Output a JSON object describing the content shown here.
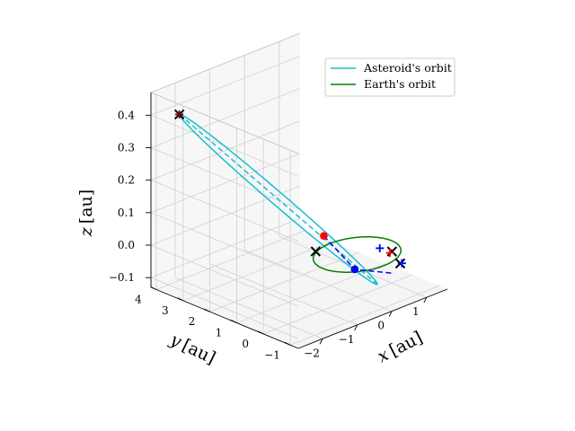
{
  "chart_data": {
    "type": "line",
    "projection": "3d",
    "title": "",
    "xlabel": "$x$ [au]",
    "ylabel": "$y$ [au]",
    "zlabel": "$z$ [au]",
    "axis_label_parts": {
      "x": {
        "var": "x",
        "unit": "[au]"
      },
      "y": {
        "var": "y",
        "unit": "[au]"
      },
      "z": {
        "var": "z",
        "unit": "[au]"
      }
    },
    "xlim": [
      -2.7,
      1.6
    ],
    "ylim": [
      -1.3,
      4.2
    ],
    "zlim": [
      -0.13,
      0.47
    ],
    "x_ticks": [
      -2,
      -1,
      0,
      1
    ],
    "y_ticks": [
      -1,
      0,
      1,
      2,
      3,
      4
    ],
    "z_ticks": [
      -0.1,
      0.0,
      0.1,
      0.2,
      0.3,
      0.4
    ],
    "x_tick_labels": [
      "−2",
      "−1",
      "0",
      "1"
    ],
    "y_tick_labels": [
      "−1",
      "0",
      "1",
      "2",
      "3",
      "4"
    ],
    "z_tick_labels": [
      "−0.1",
      "0.0",
      "0.1",
      "0.2",
      "0.3",
      "0.4"
    ],
    "grid": true,
    "legend_position": "top-right",
    "series": [
      {
        "name": "Asteroid's orbit",
        "color": "#17becf",
        "style": "solid",
        "kind": "ellipse",
        "center": [
          -1.16,
          1.44,
          0.17
        ],
        "axis_u": [
          -1.67,
          1.53,
          0.28
        ],
        "axis_v": [
          -0.25,
          -0.19,
          0.0
        ]
      },
      {
        "name": "Earth's orbit",
        "color": "#008000",
        "style": "solid",
        "kind": "circle",
        "center": [
          0,
          0,
          0
        ],
        "radius": 1.0
      }
    ],
    "extra_lines": [
      {
        "color": "#17becf",
        "style": "dashed",
        "points": [
          [
            -2.83,
            2.97,
            0.45
          ],
          [
            0.51,
            -0.09,
            -0.11
          ]
        ]
      },
      {
        "color": "#0000ff",
        "style": "dashed",
        "points": [
          [
            -0.52,
            0.57,
            0.06
          ],
          [
            -0.1,
            -0.04,
            -0.04
          ],
          [
            0.34,
            -0.95,
            -0.04
          ]
        ]
      }
    ],
    "markers": [
      {
        "shape": "x",
        "color": "#000000",
        "x": -2.83,
        "y": 2.97,
        "z": 0.45
      },
      {
        "shape": "x",
        "color": "#000000",
        "x": -0.5,
        "y": 0.9,
        "z": 0.0
      },
      {
        "shape": "x",
        "color": "#000000",
        "x": 0.62,
        "y": -0.5,
        "z": 0.0
      },
      {
        "shape": "x",
        "color": "#000000",
        "x": 0.55,
        "y": -0.9,
        "z": -0.02
      },
      {
        "shape": "+",
        "color": "#8b0000",
        "x": -2.83,
        "y": 2.97,
        "z": 0.45
      },
      {
        "shape": "+",
        "color": "#ff0000",
        "x": 0.6,
        "y": -0.45,
        "z": -0.005
      },
      {
        "shape": "+",
        "color": "#0000ff",
        "x": 0.5,
        "y": -0.2,
        "z": 0.005
      },
      {
        "shape": "+",
        "color": "#0000ff",
        "x": 0.58,
        "y": -0.92,
        "z": -0.02
      },
      {
        "shape": "dot",
        "color": "#ff0000",
        "x": -0.52,
        "y": 0.57,
        "z": 0.06
      },
      {
        "shape": "dot",
        "color": "#0000ff",
        "x": -0.1,
        "y": -0.04,
        "z": -0.04
      }
    ]
  }
}
